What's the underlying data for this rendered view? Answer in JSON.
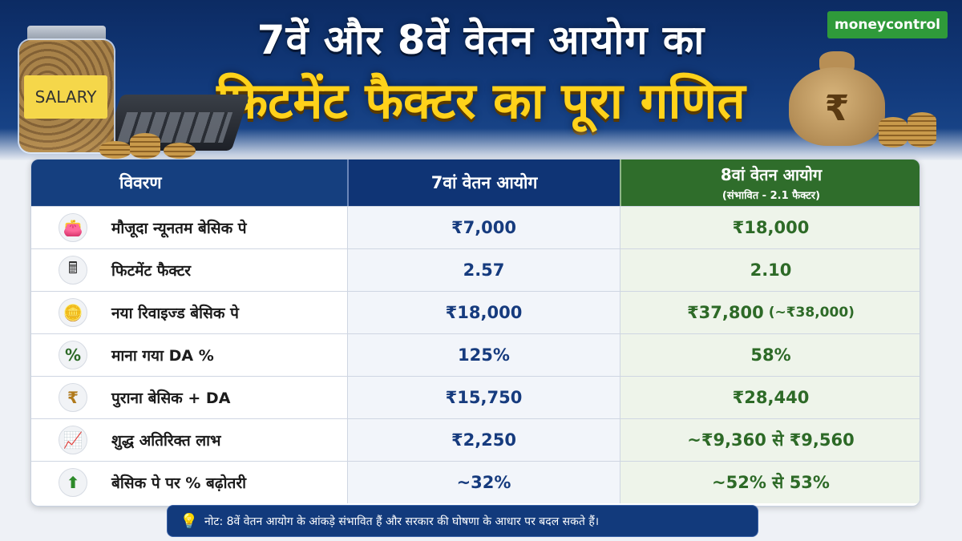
{
  "header": {
    "title_line1": "7वें और 8वें वेतन आयोग का",
    "title_line2": "फिटमेंट फैक्टर का पूरा गणित",
    "brand": "moneycontrol",
    "jar_label": "SALARY",
    "bag_symbol": "₹"
  },
  "table": {
    "columns": {
      "col1": "विवरण",
      "col2": "7वां वेतन आयोग",
      "col3": "8वां वेतन आयोग",
      "col3_sub": "(संभावित - 2.1 फैक्टर)"
    },
    "rows": [
      {
        "icon": "wallet-icon",
        "glyph": "👛",
        "label": "मौजूदा न्यूनतम बेसिक पे",
        "seventh": "₹7,000",
        "eighth": "₹18,000",
        "eighth_note": ""
      },
      {
        "icon": "calculator-icon",
        "glyph": "🖩",
        "label": "फिटमेंट फैक्टर",
        "seventh": "2.57",
        "eighth": "2.10",
        "eighth_note": ""
      },
      {
        "icon": "coins-icon",
        "glyph": "🪙",
        "label": "नया रिवाइज्ड बेसिक पे",
        "seventh": "₹18,000",
        "eighth": "₹37,800",
        "eighth_note": "(~₹38,000)"
      },
      {
        "icon": "percent-icon",
        "glyph": "%",
        "label": "माना गया DA %",
        "seventh": "125%",
        "eighth": "58%",
        "eighth_note": ""
      },
      {
        "icon": "rupee-hand-icon",
        "glyph": "₹",
        "label": "पुराना बेसिक + DA",
        "seventh": "₹15,750",
        "eighth": "₹28,440",
        "eighth_note": ""
      },
      {
        "icon": "growth-chart-icon",
        "glyph": "📈",
        "label": "शुद्ध अतिरिक्त लाभ",
        "seventh": "₹2,250",
        "eighth": "~₹9,360 से ₹9,560",
        "eighth_note": ""
      },
      {
        "icon": "up-arrow-icon",
        "glyph": "⬆",
        "label": "बेसिक पे पर % बढ़ोतरी",
        "seventh": "~32%",
        "eighth": "~52% से 53%",
        "eighth_note": ""
      }
    ]
  },
  "note": {
    "icon": "bulb-icon",
    "text": "नोट: 8वें वेतन आयोग के आंकड़े संभावित हैं और सरकार की घोषणा के आधार पर बदल सकते हैं।"
  },
  "colors": {
    "navy": "#123a7c",
    "yellow": "#ffd21a",
    "green": "#2f6d2b",
    "brand_green": "#2f9a3a"
  }
}
